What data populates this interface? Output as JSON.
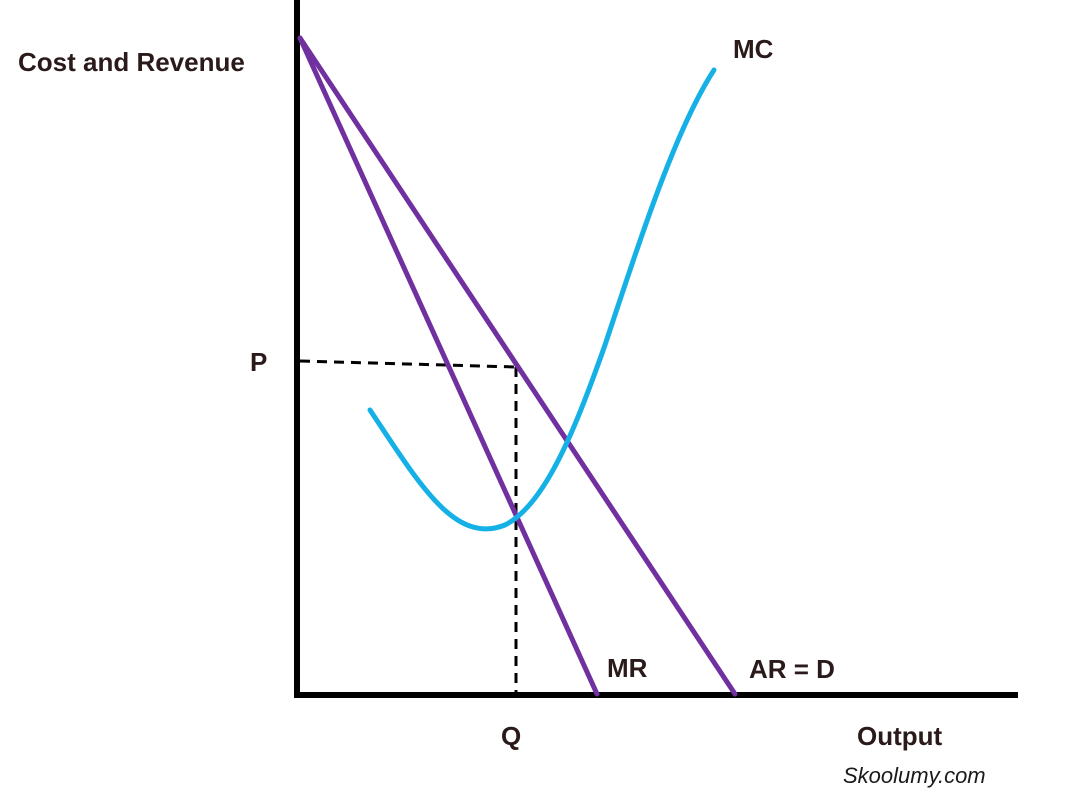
{
  "diagram": {
    "y_axis_label": "Cost and Revenue",
    "x_axis_label": "Output",
    "price_label": "P",
    "quantity_label": "Q",
    "curves": {
      "mc": {
        "label": "MC",
        "color": "#14b0e6"
      },
      "mr": {
        "label": "MR",
        "color": "#7030a0"
      },
      "ar": {
        "label": "AR = D",
        "color": "#7030a0"
      }
    },
    "axis_color": "#000000",
    "guide_color": "#000000",
    "credit": "Skoolumy.com"
  }
}
